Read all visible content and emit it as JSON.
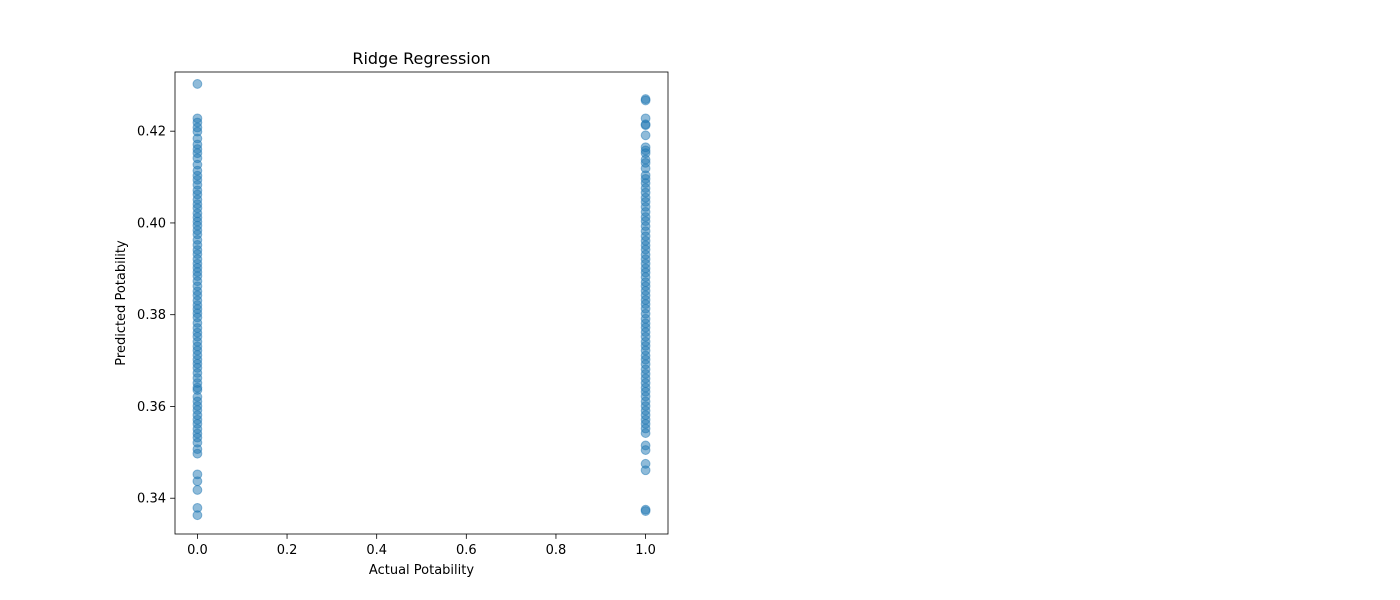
{
  "chart_data": {
    "type": "scatter",
    "title": "Ridge Regression",
    "xlabel": "Actual Potability",
    "ylabel": "Predicted Potability",
    "xlim": [
      -0.05,
      1.05
    ],
    "ylim": [
      0.3322,
      0.4329
    ],
    "xticks": [
      0.0,
      0.2,
      0.4,
      0.6,
      0.8,
      1.0
    ],
    "xtick_labels": [
      "0.0",
      "0.2",
      "0.4",
      "0.6",
      "0.8",
      "1.0"
    ],
    "yticks": [
      0.34,
      0.36,
      0.38,
      0.4,
      0.42
    ],
    "ytick_labels": [
      "0.34",
      "0.36",
      "0.38",
      "0.40",
      "0.42"
    ],
    "grid": false,
    "marker_color": "#1f77b4",
    "marker_alpha": 0.5,
    "series": [
      {
        "points": [
          [
            0,
            0.4303
          ],
          [
            0,
            0.4228
          ],
          [
            0,
            0.4219
          ],
          [
            0,
            0.4208
          ],
          [
            0,
            0.4199
          ],
          [
            0,
            0.4184
          ],
          [
            0,
            0.4171
          ],
          [
            0,
            0.4161
          ],
          [
            0,
            0.4152
          ],
          [
            0,
            0.4141
          ],
          [
            0,
            0.4127
          ],
          [
            0,
            0.4114
          ],
          [
            0,
            0.4103
          ],
          [
            0,
            0.4094
          ],
          [
            0,
            0.4083
          ],
          [
            0,
            0.4071
          ],
          [
            0,
            0.4062
          ],
          [
            0,
            0.4051
          ],
          [
            0,
            0.4041
          ],
          [
            0,
            0.4032
          ],
          [
            0,
            0.4021
          ],
          [
            0,
            0.4012
          ],
          [
            0,
            0.4003
          ],
          [
            0,
            0.3994
          ],
          [
            0,
            0.3984
          ],
          [
            0,
            0.3975
          ],
          [
            0,
            0.3963
          ],
          [
            0,
            0.3952
          ],
          [
            0,
            0.3941
          ],
          [
            0,
            0.3932
          ],
          [
            0,
            0.3921
          ],
          [
            0,
            0.3911
          ],
          [
            0,
            0.3902
          ],
          [
            0,
            0.3893
          ],
          [
            0,
            0.3884
          ],
          [
            0,
            0.3873
          ],
          [
            0,
            0.3862
          ],
          [
            0,
            0.3851
          ],
          [
            0,
            0.3842
          ],
          [
            0,
            0.3831
          ],
          [
            0,
            0.3821
          ],
          [
            0,
            0.3812
          ],
          [
            0,
            0.3803
          ],
          [
            0,
            0.3794
          ],
          [
            0,
            0.3782
          ],
          [
            0,
            0.3771
          ],
          [
            0,
            0.3761
          ],
          [
            0,
            0.3752
          ],
          [
            0,
            0.3741
          ],
          [
            0,
            0.3731
          ],
          [
            0,
            0.3722
          ],
          [
            0,
            0.3712
          ],
          [
            0,
            0.3702
          ],
          [
            0,
            0.3693
          ],
          [
            0,
            0.3684
          ],
          [
            0,
            0.3673
          ],
          [
            0,
            0.3662
          ],
          [
            0,
            0.3651
          ],
          [
            0,
            0.3641
          ],
          [
            0,
            0.3636
          ],
          [
            0,
            0.3621
          ],
          [
            0,
            0.3611
          ],
          [
            0,
            0.3601
          ],
          [
            0,
            0.3592
          ],
          [
            0,
            0.3581
          ],
          [
            0,
            0.3571
          ],
          [
            0,
            0.3562
          ],
          [
            0,
            0.3551
          ],
          [
            0,
            0.3541
          ],
          [
            0,
            0.3532
          ],
          [
            0,
            0.3521
          ],
          [
            0,
            0.3507
          ],
          [
            0,
            0.3497
          ],
          [
            0,
            0.3452
          ],
          [
            0,
            0.3437
          ],
          [
            0,
            0.3418
          ],
          [
            0,
            0.3379
          ],
          [
            0,
            0.3363
          ],
          [
            1,
            0.427
          ],
          [
            1,
            0.4267
          ],
          [
            1,
            0.4228
          ],
          [
            1,
            0.4215
          ],
          [
            1,
            0.4213
          ],
          [
            1,
            0.4191
          ],
          [
            1,
            0.4165
          ],
          [
            1,
            0.4158
          ],
          [
            1,
            0.4152
          ],
          [
            1,
            0.4138
          ],
          [
            1,
            0.4131
          ],
          [
            1,
            0.4119
          ],
          [
            1,
            0.4104
          ],
          [
            1,
            0.4096
          ],
          [
            1,
            0.4087
          ],
          [
            1,
            0.4076
          ],
          [
            1,
            0.4066
          ],
          [
            1,
            0.4055
          ],
          [
            1,
            0.4046
          ],
          [
            1,
            0.4035
          ],
          [
            1,
            0.4024
          ],
          [
            1,
            0.4013
          ],
          [
            1,
            0.4004
          ],
          [
            1,
            0.3993
          ],
          [
            1,
            0.3982
          ],
          [
            1,
            0.3971
          ],
          [
            1,
            0.3961
          ],
          [
            1,
            0.3951
          ],
          [
            1,
            0.3942
          ],
          [
            1,
            0.3931
          ],
          [
            1,
            0.3921
          ],
          [
            1,
            0.3911
          ],
          [
            1,
            0.3901
          ],
          [
            1,
            0.3892
          ],
          [
            1,
            0.3882
          ],
          [
            1,
            0.3871
          ],
          [
            1,
            0.3862
          ],
          [
            1,
            0.3852
          ],
          [
            1,
            0.3842
          ],
          [
            1,
            0.3832
          ],
          [
            1,
            0.3823
          ],
          [
            1,
            0.3813
          ],
          [
            1,
            0.3802
          ],
          [
            1,
            0.3791
          ],
          [
            1,
            0.3781
          ],
          [
            1,
            0.3772
          ],
          [
            1,
            0.3762
          ],
          [
            1,
            0.3752
          ],
          [
            1,
            0.3741
          ],
          [
            1,
            0.3732
          ],
          [
            1,
            0.3722
          ],
          [
            1,
            0.3711
          ],
          [
            1,
            0.3702
          ],
          [
            1,
            0.3692
          ],
          [
            1,
            0.3681
          ],
          [
            1,
            0.3671
          ],
          [
            1,
            0.3661
          ],
          [
            1,
            0.3651
          ],
          [
            1,
            0.3641
          ],
          [
            1,
            0.3632
          ],
          [
            1,
            0.3622
          ],
          [
            1,
            0.3611
          ],
          [
            1,
            0.3601
          ],
          [
            1,
            0.3591
          ],
          [
            1,
            0.3581
          ],
          [
            1,
            0.3571
          ],
          [
            1,
            0.3562
          ],
          [
            1,
            0.3552
          ],
          [
            1,
            0.3542
          ],
          [
            1,
            0.3515
          ],
          [
            1,
            0.3505
          ],
          [
            1,
            0.3475
          ],
          [
            1,
            0.3461
          ],
          [
            1,
            0.3375
          ],
          [
            1,
            0.3372
          ]
        ]
      }
    ]
  }
}
